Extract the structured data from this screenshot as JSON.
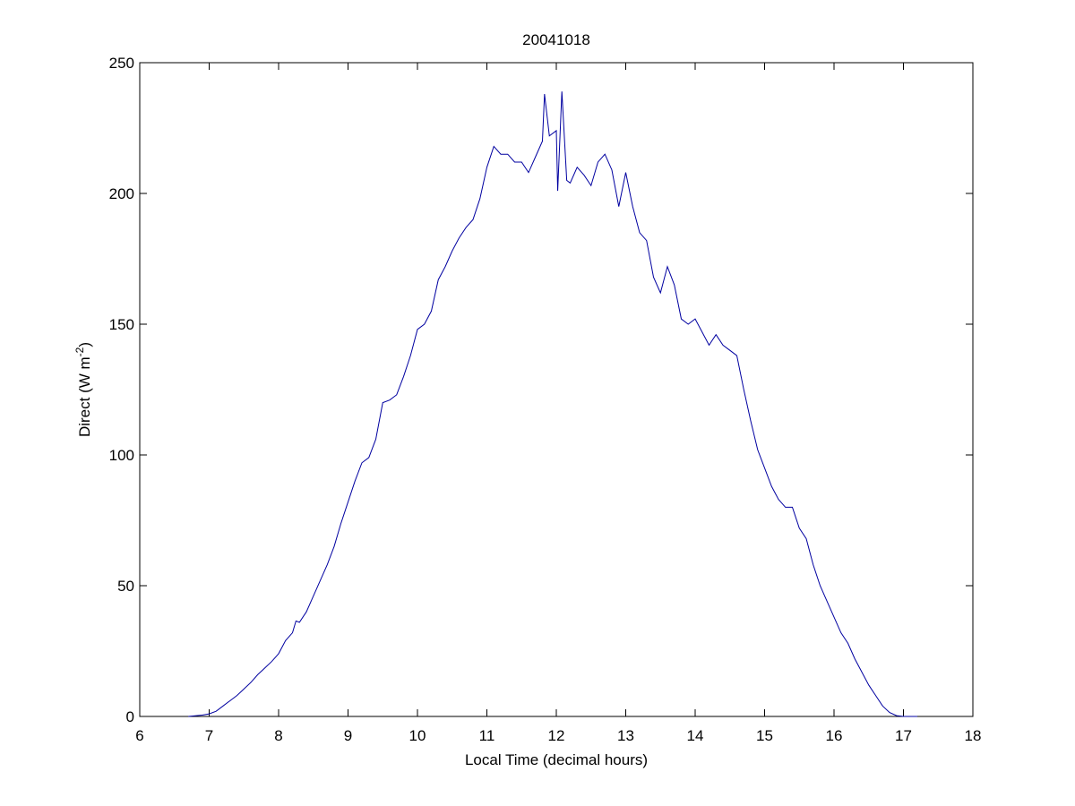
{
  "chart_data": {
    "type": "line",
    "title": "20041018",
    "xlabel": "Local Time (decimal hours)",
    "ylabel": {
      "text": "Direct (W m",
      "superscript": "-2",
      "suffix": ")"
    },
    "xlim": [
      6,
      18
    ],
    "xticks": [
      6,
      7,
      8,
      9,
      10,
      11,
      12,
      13,
      14,
      15,
      16,
      17,
      18
    ],
    "ylim": [
      0,
      250
    ],
    "yticks": [
      0,
      50,
      100,
      150,
      200,
      250
    ],
    "grid": false,
    "series": [
      {
        "color": "#0000a0",
        "x": [
          6.7,
          6.9,
          7.0,
          7.1,
          7.2,
          7.3,
          7.4,
          7.5,
          7.6,
          7.7,
          7.8,
          7.9,
          8.0,
          8.1,
          8.2,
          8.25,
          8.3,
          8.4,
          8.5,
          8.6,
          8.7,
          8.8,
          8.9,
          9.0,
          9.1,
          9.2,
          9.3,
          9.4,
          9.5,
          9.6,
          9.7,
          9.8,
          9.9,
          10.0,
          10.1,
          10.2,
          10.3,
          10.4,
          10.5,
          10.6,
          10.7,
          10.8,
          10.9,
          11.0,
          11.1,
          11.2,
          11.3,
          11.4,
          11.5,
          11.6,
          11.7,
          11.8,
          11.83,
          11.9,
          12.0,
          12.02,
          12.08,
          12.15,
          12.2,
          12.3,
          12.4,
          12.5,
          12.6,
          12.7,
          12.8,
          12.9,
          13.0,
          13.1,
          13.2,
          13.3,
          13.4,
          13.5,
          13.6,
          13.7,
          13.8,
          13.9,
          14.0,
          14.1,
          14.2,
          14.3,
          14.4,
          14.5,
          14.6,
          14.7,
          14.8,
          14.9,
          15.0,
          15.1,
          15.2,
          15.3,
          15.4,
          15.5,
          15.6,
          15.7,
          15.8,
          15.9,
          16.0,
          16.1,
          16.2,
          16.3,
          16.4,
          16.5,
          16.6,
          16.7,
          16.8,
          16.9,
          17.0,
          17.2
        ],
        "values": [
          0,
          0.5,
          1,
          2,
          4,
          6,
          8,
          10.5,
          13,
          16,
          18.5,
          21,
          24,
          29,
          32,
          36.5,
          36,
          40,
          46,
          52,
          58,
          65,
          74,
          82,
          90,
          97,
          99,
          106,
          120,
          121,
          123,
          130,
          138,
          148,
          150,
          155,
          167,
          172,
          178,
          183,
          187,
          190,
          198,
          210,
          218,
          215,
          215,
          212,
          212,
          208,
          214,
          220,
          238,
          222,
          224,
          201,
          239,
          205,
          204,
          210,
          207,
          203,
          212,
          215,
          209,
          195,
          208,
          195,
          185,
          182,
          168,
          162,
          172,
          165,
          152,
          150,
          152,
          147,
          142,
          146,
          142,
          140,
          138,
          125,
          113,
          102,
          95,
          88,
          83,
          80,
          80,
          72,
          68,
          58,
          50,
          44,
          38,
          32,
          28,
          22,
          17,
          12,
          8,
          4,
          1.5,
          0.3,
          0,
          0
        ]
      }
    ]
  }
}
